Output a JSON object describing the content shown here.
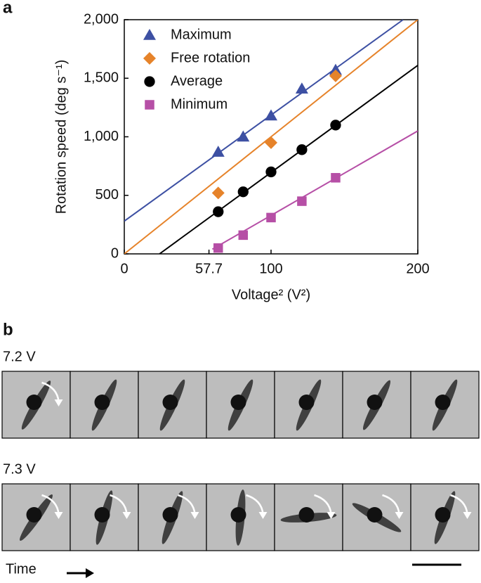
{
  "panel_a_label": "a",
  "panel_b_label": "b",
  "chart_data": {
    "type": "scatter",
    "x_label": "Voltage² (V²)",
    "y_label": "Rotation speed (deg s⁻¹)",
    "xlim": [
      0,
      200
    ],
    "xticks": [
      0,
      57.7,
      100,
      200
    ],
    "ylim": [
      0,
      2000
    ],
    "yticks": [
      0,
      500,
      {
        "value": 1000,
        "label": "1,000"
      },
      {
        "value": 1500,
        "label": "1,500"
      },
      {
        "value": 2000,
        "label": "2,000"
      }
    ],
    "legend": "upper left",
    "series": [
      {
        "name": "Maximum",
        "color": "#3d50a3",
        "marker": "triangle",
        "x": [
          64,
          81,
          100,
          121,
          144
        ],
        "values": [
          870,
          1000,
          1180,
          1410,
          1570
        ],
        "fit_x": [
          0,
          190
        ],
        "fit_values": [
          280,
          2000
        ]
      },
      {
        "name": "Free rotation",
        "color": "#e6832a",
        "marker": "diamond",
        "x": [
          64,
          100,
          144
        ],
        "values": [
          520,
          950,
          1520
        ],
        "fit_x": [
          0,
          200
        ],
        "fit_values": [
          0,
          2000
        ]
      },
      {
        "name": "Average",
        "color": "#000000",
        "marker": "circle",
        "x": [
          64,
          81,
          100,
          121,
          144
        ],
        "values": [
          360,
          530,
          700,
          890,
          1100
        ],
        "fit_x": [
          24,
          200
        ],
        "fit_values": [
          0,
          1610
        ]
      },
      {
        "name": "Minimum",
        "color": "#b64fa6",
        "marker": "square",
        "x": [
          64,
          81,
          100,
          121,
          144
        ],
        "values": [
          50,
          160,
          310,
          450,
          650
        ],
        "fit_x": [
          60,
          200
        ],
        "fit_values": [
          40,
          1050
        ]
      }
    ]
  },
  "rows": [
    {
      "label": "7.2 V"
    },
    {
      "label": "7.3 V"
    }
  ],
  "time_label": "Time"
}
